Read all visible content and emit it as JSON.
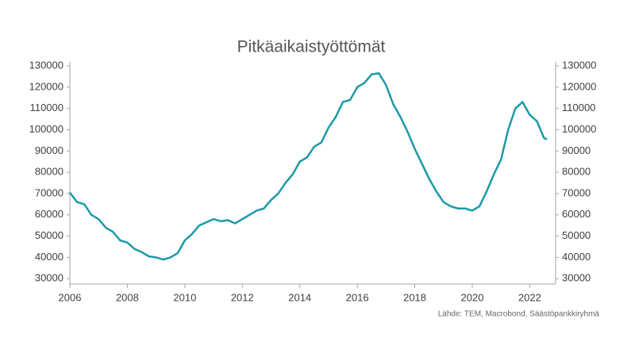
{
  "chart_data": {
    "type": "line",
    "title": "Pitkäaikaistyöttömät",
    "source": "Lähde: TEM, Macrobond, Säästöpankkiryhmä",
    "x": [
      2006.0,
      2006.25,
      2006.5,
      2006.75,
      2007.0,
      2007.25,
      2007.5,
      2007.75,
      2008.0,
      2008.25,
      2008.5,
      2008.75,
      2009.0,
      2009.25,
      2009.5,
      2009.75,
      2010.0,
      2010.25,
      2010.5,
      2010.75,
      2011.0,
      2011.25,
      2011.5,
      2011.75,
      2012.0,
      2012.25,
      2012.5,
      2012.75,
      2013.0,
      2013.25,
      2013.5,
      2013.75,
      2014.0,
      2014.25,
      2014.5,
      2014.75,
      2015.0,
      2015.25,
      2015.5,
      2015.75,
      2016.0,
      2016.25,
      2016.5,
      2016.75,
      2017.0,
      2017.25,
      2017.5,
      2017.75,
      2018.0,
      2018.25,
      2018.5,
      2018.75,
      2019.0,
      2019.25,
      2019.5,
      2019.75,
      2020.0,
      2020.25,
      2020.5,
      2020.75,
      2021.0,
      2021.25,
      2021.5,
      2021.75,
      2022.0,
      2022.25,
      2022.5,
      2022.6
    ],
    "series": [
      {
        "name": "Pitkäaikaistyöttömät",
        "color": "#1b9aa7",
        "values": [
          70500,
          66000,
          65000,
          60000,
          58000,
          54000,
          52000,
          48000,
          47000,
          44000,
          42500,
          40500,
          40000,
          39000,
          40000,
          42000,
          48000,
          51000,
          55000,
          56500,
          58000,
          57000,
          57500,
          56000,
          58000,
          60000,
          62000,
          63000,
          67000,
          70000,
          75000,
          79000,
          85000,
          87000,
          92000,
          94000,
          101000,
          106000,
          113000,
          114000,
          120000,
          122000,
          126000,
          126500,
          121000,
          112000,
          106000,
          99000,
          91000,
          84000,
          77000,
          71000,
          66000,
          64000,
          63000,
          63000,
          62000,
          64000,
          71000,
          79000,
          86000,
          100000,
          110000,
          113000,
          107000,
          104000,
          96000,
          95500
        ]
      }
    ],
    "xlim": [
      2006,
      2022.9
    ],
    "xticks": [
      2006,
      2008,
      2010,
      2012,
      2014,
      2016,
      2018,
      2020,
      2022
    ],
    "ylim": [
      27500,
      130000
    ],
    "yticks": [
      30000,
      40000,
      50000,
      60000,
      70000,
      80000,
      90000,
      100000,
      110000,
      120000,
      130000
    ],
    "grid": false
  }
}
